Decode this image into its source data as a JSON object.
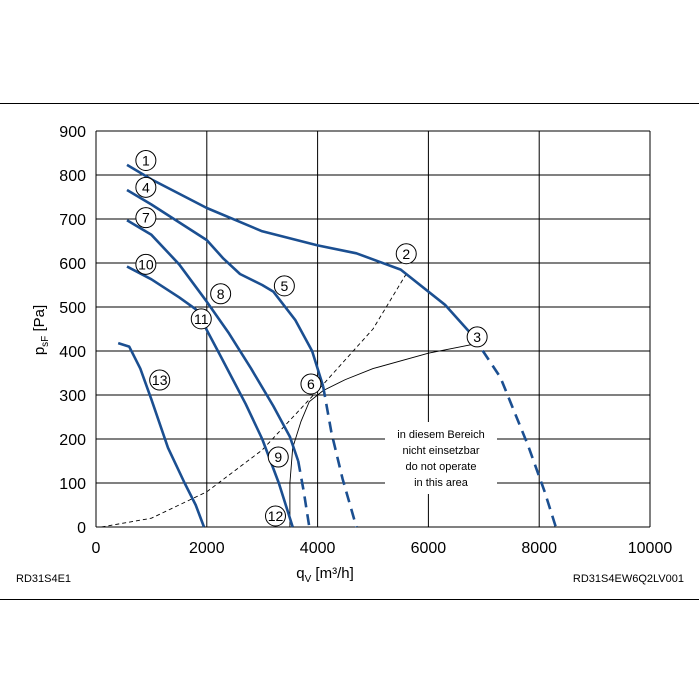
{
  "chart_data": {
    "type": "line",
    "xlabel": "q",
    "xlabel_sub": "V",
    "xlabel_unit": " [m³/h]",
    "ylabel": "p",
    "ylabel_sub": "sF",
    "ylabel_unit": " [Pa]",
    "xlim": [
      0,
      10000
    ],
    "ylim": [
      0,
      900
    ],
    "x_ticks": [
      0,
      2000,
      4000,
      6000,
      8000,
      10000
    ],
    "y_ticks": [
      0,
      100,
      200,
      300,
      400,
      500,
      600,
      700,
      800,
      900
    ],
    "grid": true,
    "code_left": "RD31S4E1",
    "code_right": "RD31S4EW6Q2LV001",
    "note": [
      "in diesem Bereich",
      "nicht einsetzbar",
      "do not operate",
      "in this area"
    ],
    "curves": [
      {
        "solid": [
          [
            560,
            823
          ],
          [
            1000,
            790
          ],
          [
            2000,
            725
          ],
          [
            3000,
            672
          ],
          [
            4000,
            640
          ],
          [
            4700,
            622
          ],
          [
            5500,
            585
          ],
          [
            6300,
            505
          ],
          [
            6800,
            435
          ]
        ],
        "dashed": [
          [
            6800,
            435
          ],
          [
            7300,
            340
          ],
          [
            7800,
            185
          ],
          [
            8100,
            80
          ],
          [
            8300,
            0
          ]
        ]
      },
      {
        "solid": [
          [
            560,
            766
          ],
          [
            1000,
            733
          ],
          [
            2000,
            652
          ],
          [
            2300,
            610
          ],
          [
            2600,
            575
          ],
          [
            3000,
            550
          ],
          [
            3200,
            535
          ],
          [
            3600,
            470
          ],
          [
            3900,
            400
          ],
          [
            4100,
            320
          ]
        ],
        "dashed": [
          [
            4100,
            320
          ],
          [
            4250,
            215
          ],
          [
            4450,
            110
          ],
          [
            4700,
            0
          ]
        ]
      },
      {
        "solid": [
          [
            560,
            697
          ],
          [
            1000,
            664
          ],
          [
            1500,
            597
          ],
          [
            2000,
            512
          ],
          [
            2400,
            440
          ],
          [
            2800,
            360
          ],
          [
            3200,
            275
          ],
          [
            3500,
            205
          ],
          [
            3650,
            150
          ]
        ],
        "dashed": [
          [
            3650,
            150
          ],
          [
            3750,
            80
          ],
          [
            3850,
            0
          ]
        ]
      },
      {
        "solid": [
          [
            560,
            592
          ],
          [
            1000,
            563
          ],
          [
            1500,
            522
          ],
          [
            1800,
            495
          ],
          [
            2200,
            400
          ],
          [
            2700,
            280
          ],
          [
            3000,
            200
          ],
          [
            3300,
            100
          ],
          [
            3550,
            0
          ]
        ]
      },
      {
        "solid": [
          [
            400,
            418
          ],
          [
            600,
            410
          ],
          [
            800,
            360
          ],
          [
            1000,
            290
          ],
          [
            1300,
            180
          ],
          [
            1600,
            100
          ],
          [
            1800,
            50
          ],
          [
            1950,
            0
          ]
        ]
      }
    ],
    "resistance_curve": [
      [
        100,
        0
      ],
      [
        1000,
        20
      ],
      [
        2000,
        80
      ],
      [
        3000,
        175
      ],
      [
        4000,
        310
      ],
      [
        5000,
        450
      ],
      [
        5600,
        575
      ]
    ],
    "operating_line": [
      [
        3500,
        0
      ],
      [
        3500,
        100
      ],
      [
        3550,
        180
      ],
      [
        3700,
        240
      ],
      [
        3850,
        285
      ],
      [
        4100,
        310
      ],
      [
        4500,
        335
      ],
      [
        5000,
        360
      ],
      [
        6000,
        395
      ],
      [
        7000,
        420
      ]
    ],
    "markers": [
      {
        "label": "1",
        "x": 900,
        "y": 833
      },
      {
        "label": "2",
        "x": 5600,
        "y": 621
      },
      {
        "label": "3",
        "x": 6880,
        "y": 432
      },
      {
        "label": "4",
        "x": 900,
        "y": 772
      },
      {
        "label": "5",
        "x": 3400,
        "y": 548
      },
      {
        "label": "6",
        "x": 3880,
        "y": 325
      },
      {
        "label": "7",
        "x": 900,
        "y": 703
      },
      {
        "label": "8",
        "x": 2250,
        "y": 530
      },
      {
        "label": "9",
        "x": 3290,
        "y": 159
      },
      {
        "label": "10",
        "x": 900,
        "y": 597
      },
      {
        "label": "11",
        "x": 1900,
        "y": 473
      },
      {
        "label": "12",
        "x": 3240,
        "y": 25
      },
      {
        "label": "13",
        "x": 1150,
        "y": 334
      }
    ]
  }
}
